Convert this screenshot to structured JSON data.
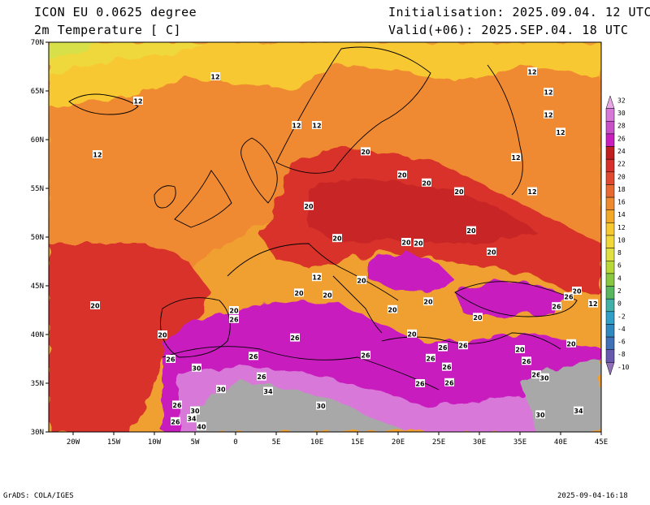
{
  "header": {
    "model": "ICON EU 0.0625 degree",
    "variable": "2m Temperature [ C]",
    "init": "Initialisation: 2025.09.04. 12 UTC",
    "valid": "Valid(+06): 2025.SEP.04. 18 UTC"
  },
  "axes": {
    "lat_labels": [
      "70N",
      "65N",
      "60N",
      "55N",
      "50N",
      "45N",
      "40N",
      "35N",
      "30N"
    ],
    "lon_labels": [
      "20W",
      "15W",
      "10W",
      "5W",
      "0",
      "5E",
      "10E",
      "15E",
      "20E",
      "25E",
      "30E",
      "35E",
      "40E",
      "45E"
    ],
    "lon_range": [
      -23,
      45
    ],
    "lat_range": [
      30,
      70
    ]
  },
  "colorbar": {
    "levels": [
      "32",
      "30",
      "28",
      "26",
      "24",
      "22",
      "20",
      "18",
      "16",
      "14",
      "12",
      "10",
      "8",
      "6",
      "4",
      "2",
      "0",
      "-2",
      "-4",
      "-6",
      "-8",
      "-10"
    ],
    "colors": [
      "#e8a8e8",
      "#d878d8",
      "#c850c8",
      "#c81fbe",
      "#c01f1f",
      "#d8302a",
      "#e04a30",
      "#e86a30",
      "#f08a30",
      "#f4a828",
      "#f8c830",
      "#f0d838",
      "#e0e040",
      "#b8d838",
      "#88c840",
      "#58b860",
      "#40b0a8",
      "#30a0c8",
      "#3088c0",
      "#4070b8",
      "#6858b0",
      "#9070b8"
    ]
  },
  "contour_labels": [
    {
      "t": "12",
      "lon": -2.5,
      "lat": 66.5
    },
    {
      "t": "12",
      "lon": -12,
      "lat": 64.0
    },
    {
      "t": "12",
      "lon": -17,
      "lat": 58.5
    },
    {
      "t": "12",
      "lon": 7.5,
      "lat": 61.5
    },
    {
      "t": "12",
      "lon": 10,
      "lat": 61.5
    },
    {
      "t": "12",
      "lon": 36.5,
      "lat": 67.0
    },
    {
      "t": "12",
      "lon": 38.5,
      "lat": 64.9
    },
    {
      "t": "12",
      "lon": 38.5,
      "lat": 62.6
    },
    {
      "t": "12",
      "lon": 40,
      "lat": 60.8
    },
    {
      "t": "12",
      "lon": 34.5,
      "lat": 58.2
    },
    {
      "t": "12",
      "lon": 36.5,
      "lat": 54.7
    },
    {
      "t": "20",
      "lon": 16,
      "lat": 58.8
    },
    {
      "t": "20",
      "lon": 20.5,
      "lat": 56.4
    },
    {
      "t": "20",
      "lon": 23.5,
      "lat": 55.6
    },
    {
      "t": "20",
      "lon": 27.5,
      "lat": 54.7
    },
    {
      "t": "20",
      "lon": 9,
      "lat": 53.2
    },
    {
      "t": "20",
      "lon": 12.5,
      "lat": 49.9
    },
    {
      "t": "20",
      "lon": 21,
      "lat": 49.5
    },
    {
      "t": "20",
      "lon": 22.5,
      "lat": 49.4
    },
    {
      "t": "20",
      "lon": 29,
      "lat": 50.7
    },
    {
      "t": "20",
      "lon": 31.5,
      "lat": 48.5
    },
    {
      "t": "12",
      "lon": 10,
      "lat": 45.9
    },
    {
      "t": "20",
      "lon": 15.5,
      "lat": 45.6
    },
    {
      "t": "20",
      "lon": 7.8,
      "lat": 44.3
    },
    {
      "t": "20",
      "lon": 11.3,
      "lat": 44.1
    },
    {
      "t": "20",
      "lon": -17.3,
      "lat": 43.0
    },
    {
      "t": "20",
      "lon": -0.2,
      "lat": 42.5
    },
    {
      "t": "26",
      "lon": -0.2,
      "lat": 41.6
    },
    {
      "t": "20",
      "lon": 19.3,
      "lat": 42.6
    },
    {
      "t": "20",
      "lon": 23.7,
      "lat": 43.4
    },
    {
      "t": "20",
      "lon": 29.8,
      "lat": 41.8
    },
    {
      "t": "20",
      "lon": 42,
      "lat": 44.5
    },
    {
      "t": "26",
      "lon": 41,
      "lat": 43.9
    },
    {
      "t": "26",
      "lon": 39.5,
      "lat": 42.9
    },
    {
      "t": "12",
      "lon": 44,
      "lat": 43.2
    },
    {
      "t": "20",
      "lon": -9,
      "lat": 40.0
    },
    {
      "t": "26",
      "lon": 7.3,
      "lat": 39.7
    },
    {
      "t": "20",
      "lon": 21.7,
      "lat": 40.1
    },
    {
      "t": "26",
      "lon": 25.5,
      "lat": 38.7
    },
    {
      "t": "26",
      "lon": 28,
      "lat": 38.9
    },
    {
      "t": "20",
      "lon": 35,
      "lat": 38.5
    },
    {
      "t": "20",
      "lon": 41.3,
      "lat": 39.1
    },
    {
      "t": "26",
      "lon": -8,
      "lat": 37.5
    },
    {
      "t": "30",
      "lon": -4.8,
      "lat": 36.6
    },
    {
      "t": "26",
      "lon": 2.2,
      "lat": 37.8
    },
    {
      "t": "26",
      "lon": 16,
      "lat": 37.9
    },
    {
      "t": "26",
      "lon": 24,
      "lat": 37.6
    },
    {
      "t": "26",
      "lon": 26,
      "lat": 36.7
    },
    {
      "t": "26",
      "lon": 35.8,
      "lat": 37.3
    },
    {
      "t": "26",
      "lon": 37,
      "lat": 35.9
    },
    {
      "t": "30",
      "lon": 38,
      "lat": 35.6
    },
    {
      "t": "26",
      "lon": 3.2,
      "lat": 35.7
    },
    {
      "t": "26",
      "lon": 22.7,
      "lat": 35.0
    },
    {
      "t": "26",
      "lon": 26.3,
      "lat": 35.1
    },
    {
      "t": "30",
      "lon": -1.8,
      "lat": 34.4
    },
    {
      "t": "34",
      "lon": 4,
      "lat": 34.2
    },
    {
      "t": "26",
      "lon": -7.2,
      "lat": 32.8
    },
    {
      "t": "30",
      "lon": -5,
      "lat": 32.2
    },
    {
      "t": "34",
      "lon": -5.4,
      "lat": 31.4
    },
    {
      "t": "30",
      "lon": 10.5,
      "lat": 32.7
    },
    {
      "t": "26",
      "lon": -7.4,
      "lat": 31.1
    },
    {
      "t": "40",
      "lon": -4.2,
      "lat": 30.6
    },
    {
      "t": "30",
      "lon": 37.5,
      "lat": 31.8
    },
    {
      "t": "34",
      "lon": 42.2,
      "lat": 32.2
    }
  ],
  "footer": {
    "left": "GrADS: COLA/IGES",
    "right": "2025-09-04-16:18"
  }
}
